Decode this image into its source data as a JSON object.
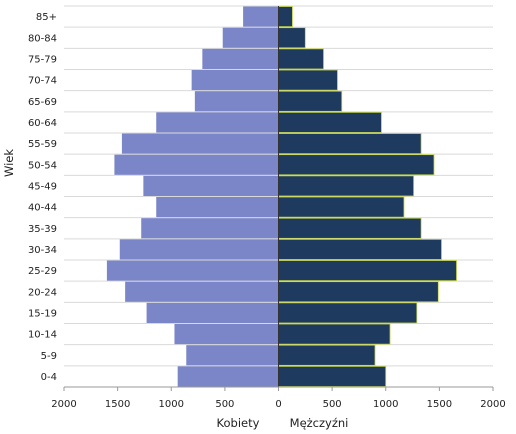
{
  "chart_data": {
    "type": "bar",
    "orientation": "horizontal",
    "subtype": "population-pyramid",
    "categories": [
      "0-4",
      "5-9",
      "10-14",
      "15-19",
      "20-24",
      "25-29",
      "30-34",
      "35-39",
      "40-44",
      "45-49",
      "50-54",
      "55-59",
      "60-64",
      "65-69",
      "70-74",
      "75-79",
      "80-84",
      "85+"
    ],
    "series": [
      {
        "name": "Kobiety",
        "side": "left",
        "color": "#7b86c8",
        "values": [
          940,
          860,
          970,
          1230,
          1430,
          1600,
          1480,
          1280,
          1140,
          1260,
          1530,
          1460,
          1140,
          780,
          810,
          710,
          520,
          330
        ]
      },
      {
        "name": "Mężczyźni",
        "side": "right",
        "color": "#1f3a5f",
        "values": [
          1000,
          900,
          1040,
          1290,
          1490,
          1660,
          1520,
          1330,
          1170,
          1260,
          1450,
          1330,
          960,
          590,
          550,
          420,
          250,
          130
        ]
      }
    ],
    "ylabel": "Wiek",
    "xlabel_left": "Kobiety",
    "xlabel_right": "Mężczyźni",
    "xlim": [
      -2000,
      2000
    ],
    "xticks": [
      -2000,
      -1500,
      -1000,
      -500,
      0,
      500,
      1000,
      1500,
      2000
    ],
    "xtick_labels": [
      "2000",
      "1500",
      "1000",
      "500",
      "0",
      "500",
      "1000",
      "1500",
      "2000"
    ],
    "grid": "horizontal",
    "bar_edge_color": "#c8d84a"
  }
}
